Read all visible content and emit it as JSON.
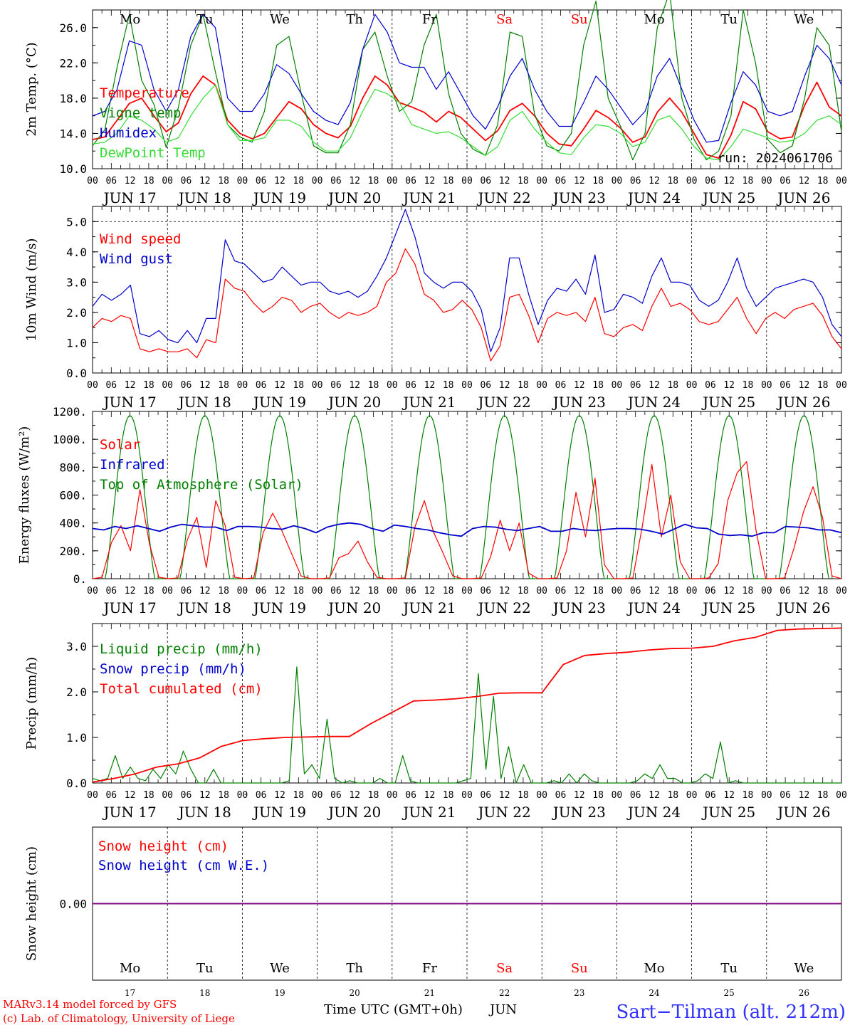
{
  "colors": {
    "red": "#ff0000",
    "green": "#008000",
    "blue": "#0000cc",
    "lightgreen": "#33dd33",
    "purple": "#800080",
    "footer_blue": "#3333ff"
  },
  "day_names": [
    "Mo",
    "Tu",
    "We",
    "Th",
    "Fr",
    "Sa",
    "Su",
    "Mo",
    "Tu",
    "We"
  ],
  "weekend_flags": [
    false,
    false,
    false,
    false,
    false,
    true,
    true,
    false,
    false,
    false
  ],
  "date_labels": [
    "JUN 17",
    "JUN 18",
    "JUN 19",
    "JUN 20",
    "JUN 21",
    "JUN 22",
    "JUN 23",
    "JUN 24",
    "JUN 25",
    "JUN 26"
  ],
  "day_numbers": [
    "17",
    "18",
    "19",
    "20",
    "21",
    "22",
    "23",
    "24",
    "25",
    "26"
  ],
  "hour_labels": [
    "00",
    "06",
    "12",
    "18"
  ],
  "hour_end_label": "00",
  "footer": {
    "model_line": "MARv3.14 model forced by GFS",
    "lab_line": "(c) Lab. of Climatology, University of Liege",
    "time_label": "Time UTC (GMT+0h)",
    "month": "JUN",
    "station": "Sart−Tilman (alt. 212m)"
  },
  "chart_data": [
    {
      "type": "line",
      "ylabel": "2m Temp. (°C)",
      "ylim": [
        10,
        28
      ],
      "yticks": [
        "10.0",
        "14.0",
        "18.0",
        "22.0",
        "26.0"
      ],
      "annotation": "run: 2024061706",
      "legend": [
        "Temperature",
        "Vigne temp",
        "Humidex",
        "DewPoint Temp"
      ],
      "series": [
        {
          "name": "Temperature",
          "color": "red",
          "values": [
            13.3,
            13.6,
            15.5,
            17.4,
            18.0,
            16.0,
            14.2,
            15.2,
            18.5,
            20.5,
            19.5,
            15.5,
            14.0,
            13.4,
            14.0,
            15.8,
            17.6,
            16.8,
            15.0,
            14.0,
            13.5,
            14.8,
            18.0,
            20.5,
            19.5,
            17.5,
            17.0,
            16.4,
            15.3,
            16.5,
            15.8,
            14.5,
            13.2,
            14.3,
            16.6,
            17.4,
            16.0,
            14.0,
            12.8,
            12.6,
            14.5,
            16.6,
            15.8,
            14.6,
            13.0,
            13.6,
            16.4,
            18.0,
            16.4,
            14.0,
            11.6,
            11.2,
            13.8,
            17.6,
            16.8,
            14.2,
            13.4,
            13.6,
            17.2,
            19.8,
            17.0,
            16.0
          ]
        },
        {
          "name": "Vigne temp",
          "color": "green",
          "values": [
            12.6,
            14.4,
            21.5,
            27.5,
            20.0,
            17.3,
            12.4,
            17.0,
            24.0,
            27.5,
            21.0,
            15.0,
            13.6,
            13.0,
            16.5,
            24.0,
            25.0,
            18.5,
            12.6,
            11.8,
            11.8,
            15.0,
            23.5,
            25.5,
            20.5,
            16.5,
            17.6,
            24.0,
            27.5,
            18.5,
            14.0,
            12.2,
            11.5,
            15.0,
            25.5,
            25.0,
            16.2,
            12.6,
            12.0,
            14.0,
            24.0,
            29.0,
            18.0,
            14.8,
            11.0,
            14.0,
            26.0,
            30.0,
            18.0,
            13.3,
            11.0,
            12.0,
            16.0,
            28.0,
            22.0,
            13.3,
            11.8,
            12.6,
            18.0,
            26.0,
            24.0,
            14.2
          ]
        },
        {
          "name": "Humidex",
          "color": "blue",
          "values": [
            16.0,
            16.5,
            19.0,
            24.5,
            24.0,
            19.0,
            16.5,
            19.0,
            25.0,
            27.5,
            26.0,
            18.0,
            16.5,
            16.5,
            18.5,
            21.8,
            20.8,
            18.5,
            16.5,
            15.5,
            15.0,
            17.5,
            23.5,
            27.5,
            25.5,
            22.0,
            21.5,
            21.5,
            19.0,
            21.0,
            18.5,
            16.0,
            14.5,
            17.0,
            20.5,
            22.5,
            19.0,
            16.5,
            14.8,
            14.8,
            17.5,
            20.5,
            19.0,
            17.0,
            15.0,
            16.5,
            20.5,
            22.5,
            19.0,
            15.5,
            13.0,
            13.2,
            17.5,
            21.0,
            19.5,
            16.5,
            16.0,
            16.5,
            20.5,
            24.0,
            22.5,
            19.5
          ]
        },
        {
          "name": "DewPoint Temp",
          "color": "lightgreen",
          "values": [
            12.8,
            13.0,
            14.0,
            16.0,
            15.5,
            14.5,
            13.0,
            13.5,
            16.0,
            18.0,
            19.5,
            15.0,
            13.2,
            13.2,
            13.5,
            15.5,
            15.5,
            14.8,
            13.0,
            12.0,
            12.0,
            13.5,
            16.5,
            19.0,
            18.5,
            17.5,
            15.0,
            14.5,
            14.0,
            14.2,
            13.5,
            12.5,
            11.5,
            12.5,
            15.5,
            16.5,
            14.5,
            13.0,
            11.8,
            11.6,
            13.5,
            15.0,
            14.8,
            14.0,
            12.5,
            13.0,
            15.5,
            16.0,
            14.5,
            12.5,
            11.2,
            11.0,
            12.5,
            14.5,
            14.0,
            13.5,
            13.0,
            13.2,
            14.0,
            15.5,
            16.0,
            15.0
          ]
        }
      ]
    },
    {
      "type": "line",
      "ylabel": "10m Wind (m/s)",
      "ylim": [
        0,
        5.5
      ],
      "yticks": [
        "0.0",
        "1.0",
        "2.0",
        "3.0",
        "4.0",
        "5.0"
      ],
      "legend": [
        "Wind speed",
        "Wind gust"
      ],
      "series": [
        {
          "name": "Wind speed",
          "color": "red",
          "values": [
            1.5,
            1.8,
            1.7,
            1.9,
            1.8,
            0.8,
            0.7,
            0.8,
            0.7,
            0.7,
            0.8,
            0.5,
            1.1,
            1.0,
            3.1,
            2.8,
            2.7,
            2.3,
            2.0,
            2.2,
            2.5,
            2.4,
            2.0,
            2.2,
            2.3,
            2.0,
            1.8,
            2.0,
            1.9,
            2.0,
            2.2,
            3.0,
            3.3,
            4.1,
            3.6,
            2.6,
            2.4,
            2.0,
            2.1,
            2.4,
            2.1,
            1.5,
            0.4,
            0.9,
            2.5,
            2.6,
            1.9,
            1.0,
            1.8,
            2.0,
            1.9,
            2.0,
            1.7,
            2.5,
            1.3,
            1.2,
            1.5,
            1.6,
            1.4,
            2.2,
            2.8,
            2.2,
            2.3,
            2.1,
            1.7,
            1.6,
            1.7,
            2.1,
            2.5,
            1.8,
            1.3,
            1.8,
            2.0,
            1.8,
            2.1,
            2.2,
            2.3,
            1.9,
            1.2,
            0.8
          ]
        },
        {
          "name": "Wind gust",
          "color": "blue",
          "values": [
            2.2,
            2.6,
            2.4,
            2.6,
            2.9,
            1.3,
            1.2,
            1.4,
            1.1,
            1.0,
            1.4,
            1.0,
            1.8,
            1.8,
            4.4,
            3.7,
            3.6,
            3.3,
            3.0,
            3.1,
            3.5,
            3.2,
            2.9,
            3.0,
            3.0,
            2.7,
            2.6,
            2.7,
            2.5,
            2.7,
            3.2,
            3.8,
            4.6,
            5.4,
            4.5,
            3.3,
            3.0,
            2.8,
            3.0,
            3.0,
            2.7,
            2.1,
            0.7,
            1.5,
            3.8,
            3.8,
            2.6,
            1.6,
            2.4,
            2.8,
            2.7,
            3.1,
            2.6,
            3.9,
            2.0,
            2.1,
            2.6,
            2.5,
            2.3,
            3.2,
            3.8,
            3.0,
            3.0,
            2.9,
            2.4,
            2.2,
            2.4,
            3.0,
            3.8,
            2.8,
            2.2,
            2.5,
            2.8,
            2.9,
            3.0,
            3.1,
            3.0,
            2.5,
            1.6,
            1.2
          ]
        }
      ]
    },
    {
      "type": "line",
      "ylabel": "Energy fluxes (W/m²)",
      "ylim": [
        0,
        1200
      ],
      "yticks": [
        "0.",
        "200.",
        "400.",
        "600.",
        "800.",
        "1000.",
        "1200."
      ],
      "legend": [
        "Solar",
        "Infrared",
        "Top of Atmosphere (Solar)"
      ],
      "toa_peak": 1170,
      "series": [
        {
          "name": "Solar",
          "color": "red",
          "values": [
            0,
            10,
            260,
            380,
            200,
            640,
            250,
            10,
            0,
            5,
            280,
            440,
            80,
            560,
            380,
            10,
            0,
            5,
            330,
            470,
            340,
            180,
            20,
            0,
            0,
            5,
            150,
            180,
            270,
            120,
            10,
            0,
            0,
            5,
            370,
            560,
            330,
            180,
            20,
            0,
            0,
            5,
            160,
            420,
            200,
            400,
            40,
            0,
            0,
            5,
            200,
            620,
            300,
            720,
            100,
            0,
            0,
            5,
            380,
            820,
            300,
            600,
            120,
            0,
            0,
            5,
            110,
            560,
            760,
            840,
            340,
            0,
            0,
            5,
            220,
            480,
            660,
            440,
            20,
            0
          ]
        },
        {
          "name": "Infrared",
          "color": "blue",
          "values": [
            360,
            350,
            375,
            360,
            380,
            360,
            340,
            370,
            390,
            380,
            370,
            370,
            345,
            375,
            375,
            370,
            360,
            355,
            380,
            360,
            330,
            370,
            390,
            400,
            390,
            360,
            340,
            385,
            375,
            360,
            350,
            330,
            315,
            305,
            360,
            375,
            370,
            355,
            345,
            360,
            375,
            340,
            340,
            360,
            350,
            345,
            355,
            360,
            360,
            355,
            340,
            320,
            355,
            390,
            365,
            360,
            320,
            310,
            315,
            305,
            330,
            330,
            375,
            370,
            365,
            350,
            350,
            330
          ]
        }
      ]
    },
    {
      "type": "line",
      "ylabel": "Precip (mm/h)",
      "ylim": [
        0,
        3.5
      ],
      "yticks": [
        "0.0",
        "1.0",
        "2.0",
        "3.0"
      ],
      "legend": [
        "Liquid precip (mm/h)",
        "Snow precip (mm/h)",
        "Total cumulated (cm)"
      ],
      "series": [
        {
          "name": "Liquid precip (mm/h)",
          "color": "green",
          "values": [
            0.1,
            0.05,
            0.1,
            0.6,
            0.1,
            0.35,
            0.1,
            0.05,
            0.3,
            0.1,
            0.4,
            0.2,
            0.7,
            0.3,
            0,
            0,
            0.3,
            0,
            0,
            0,
            0,
            0,
            0,
            0,
            0,
            0,
            0.05,
            2.55,
            0.2,
            0.4,
            0.1,
            1.4,
            0.1,
            0,
            0.05,
            0,
            0,
            0,
            0.1,
            0,
            0,
            0.6,
            0.05,
            0,
            0,
            0,
            0,
            0,
            0,
            0.05,
            0.1,
            2.4,
            0.3,
            1.9,
            0.1,
            0.8,
            0,
            0.4,
            0,
            0,
            0,
            0.05,
            0,
            0.2,
            0,
            0.2,
            0.05,
            0,
            0,
            0,
            0,
            0,
            0.05,
            0.2,
            0.1,
            0.4,
            0.1,
            0.1,
            0,
            0,
            0.05,
            0.2,
            0.1,
            0.9,
            0,
            0.05,
            0,
            0,
            0,
            0,
            0,
            0,
            0,
            0,
            0,
            0,
            0,
            0,
            0,
            0
          ]
        },
        {
          "name": "Snow precip (mm/h)",
          "color": "blue",
          "values": []
        },
        {
          "name": "Total cumulated (cm)",
          "color": "red",
          "values": [
            0.02,
            0.1,
            0.2,
            0.35,
            0.42,
            0.55,
            0.8,
            0.93,
            0.97,
            1.0,
            1.01,
            1.02,
            1.02,
            1.3,
            1.55,
            1.8,
            1.82,
            1.85,
            1.9,
            1.97,
            1.98,
            1.98,
            2.6,
            2.8,
            2.84,
            2.87,
            2.92,
            2.95,
            2.96,
            3.0,
            3.12,
            3.2,
            3.35,
            3.38,
            3.39,
            3.4
          ]
        }
      ]
    },
    {
      "type": "line",
      "ylabel": "Snow height (cm)",
      "ylim": [
        -1,
        1
      ],
      "yticks": [
        "0.00"
      ],
      "legend": [
        "Snow height (cm)",
        "Snow height (cm W.E.)"
      ],
      "series": [
        {
          "name": "Snow height (cm)",
          "color": "red",
          "values": [
            0,
            0
          ]
        },
        {
          "name": "Snow height (cm W.E.)",
          "color": "blue",
          "values": [
            0,
            0
          ]
        }
      ]
    }
  ]
}
